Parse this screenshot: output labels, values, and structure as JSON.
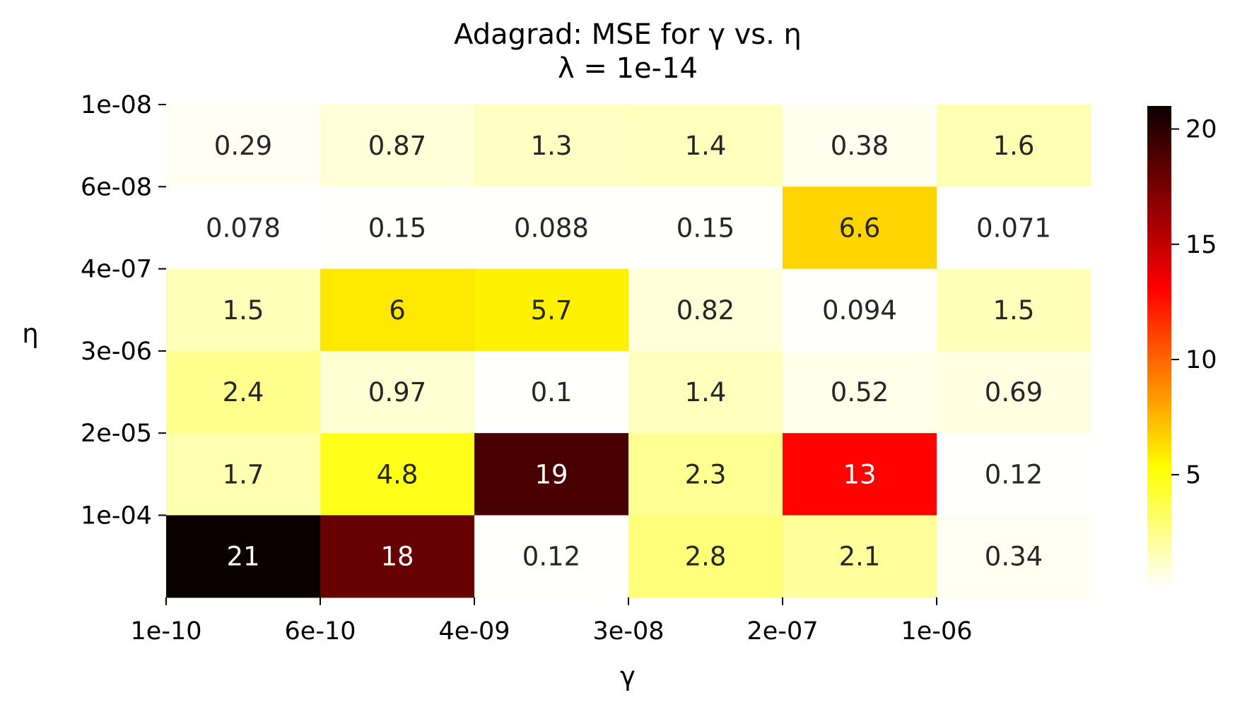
{
  "chart_data": {
    "type": "heatmap",
    "title": "Adagrad: MSE for γ vs. η",
    "subtitle": "λ = 1e-14",
    "xlabel": "γ",
    "ylabel": "η",
    "x_tick_labels": [
      "1e-10",
      "6e-10",
      "4e-09",
      "3e-08",
      "2e-07",
      "1e-06"
    ],
    "y_tick_labels": [
      "1e-08",
      "6e-08",
      "4e-07",
      "3e-06",
      "2e-05",
      "1e-04"
    ],
    "values": [
      [
        0.29,
        0.87,
        1.3,
        1.4,
        0.38,
        1.6
      ],
      [
        0.078,
        0.15,
        0.088,
        0.15,
        6.6,
        0.071
      ],
      [
        1.5,
        6,
        5.7,
        0.82,
        0.094,
        1.5
      ],
      [
        2.4,
        0.97,
        0.1,
        1.4,
        0.52,
        0.69
      ],
      [
        1.7,
        4.8,
        19,
        2.3,
        13,
        0.12
      ],
      [
        21,
        18,
        0.12,
        2.8,
        2.1,
        0.34
      ]
    ],
    "value_labels": [
      [
        "0.29",
        "0.87",
        "1.3",
        "1.4",
        "0.38",
        "1.6"
      ],
      [
        "0.078",
        "0.15",
        "0.088",
        "0.15",
        "6.6",
        "0.071"
      ],
      [
        "1.5",
        "6",
        "5.7",
        "0.82",
        "0.094",
        "1.5"
      ],
      [
        "2.4",
        "0.97",
        "0.1",
        "1.4",
        "0.52",
        "0.69"
      ],
      [
        "1.7",
        "4.8",
        "19",
        "2.3",
        "13",
        "0.12"
      ],
      [
        "21",
        "18",
        "0.12",
        "2.8",
        "2.1",
        "0.34"
      ]
    ],
    "colormap": "hot_r",
    "colorbar": {
      "vmin": 0.071,
      "vmax": 21,
      "ticks": [
        5,
        10,
        15,
        20
      ],
      "tick_labels": [
        "5",
        "10",
        "15",
        "20"
      ]
    }
  }
}
